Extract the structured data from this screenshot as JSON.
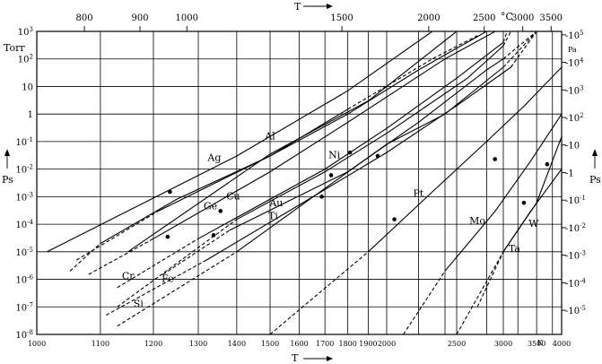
{
  "chart_data": {
    "type": "line",
    "title": "",
    "y_scale": "log",
    "x_scale": "reciprocal",
    "grid": true,
    "top_axis": {
      "label": "T",
      "ticks": [
        {
          "v": 800,
          "text": "800"
        },
        {
          "v": 900,
          "text": "900"
        },
        {
          "v": 1000,
          "text": "1000"
        },
        {
          "v": 1500,
          "text": "1500"
        },
        {
          "v": 2000,
          "text": "2000"
        },
        {
          "v": 2500,
          "text": "2500"
        },
        {
          "v": 3000,
          "text": "3000"
        },
        {
          "v": 3500,
          "text": "3500"
        }
      ],
      "unit": "°C"
    },
    "bottom_axis": {
      "label": "T",
      "unit": "K",
      "ticks": [
        {
          "v": 1000,
          "text": "1000"
        },
        {
          "v": 1100,
          "text": "1100"
        },
        {
          "v": 1200,
          "text": "1200"
        },
        {
          "v": 1300,
          "text": "1300"
        },
        {
          "v": 1400,
          "text": "1400"
        },
        {
          "v": 1500,
          "text": "1500"
        },
        {
          "v": 1600,
          "text": "1600"
        },
        {
          "v": 1700,
          "text": "1700"
        },
        {
          "v": 1800,
          "text": "1800"
        },
        {
          "v": 1900,
          "text": "1900"
        },
        {
          "v": 2000,
          "text": "2000"
        },
        {
          "v": 2500,
          "text": "2500"
        },
        {
          "v": 3000,
          "text": "3000"
        },
        {
          "v": 3500,
          "text": "3500"
        },
        {
          "v": 4000,
          "text": "4000"
        }
      ],
      "extra_grid": [
        2200,
        2400,
        2800,
        3200,
        3800
      ]
    },
    "left_axis": {
      "unit": "Torr",
      "label": "Ps",
      "ylim": [
        1e-08,
        1000
      ],
      "ticks": [
        {
          "v": 1000,
          "base": "10",
          "exp": "3"
        },
        {
          "v": 100,
          "base": "10",
          "exp": "2"
        },
        {
          "v": 10,
          "base": "10",
          "exp": ""
        },
        {
          "v": 1,
          "base": "1",
          "exp": ""
        },
        {
          "v": 0.1,
          "base": "10",
          "exp": "-1"
        },
        {
          "v": 0.01,
          "base": "10",
          "exp": "-2"
        },
        {
          "v": 0.001,
          "base": "10",
          "exp": "-3"
        },
        {
          "v": 0.0001,
          "base": "10",
          "exp": "-4"
        },
        {
          "v": 1e-05,
          "base": "10",
          "exp": "-5"
        },
        {
          "v": 1e-06,
          "base": "10",
          "exp": "-6"
        },
        {
          "v": 1e-07,
          "base": "10",
          "exp": "-7"
        },
        {
          "v": 1e-08,
          "base": "10",
          "exp": "-8"
        }
      ]
    },
    "right_axis": {
      "unit": "Pa",
      "label": "Ps",
      "ticks": [
        {
          "v": 100000,
          "base": "10",
          "exp": "5"
        },
        {
          "v": 10000,
          "base": "10",
          "exp": "4"
        },
        {
          "v": 1000,
          "base": "10",
          "exp": "3"
        },
        {
          "v": 100,
          "base": "10",
          "exp": "2"
        },
        {
          "v": 10,
          "base": "10",
          "exp": ""
        },
        {
          "v": 1,
          "base": "1",
          "exp": ""
        },
        {
          "v": 0.1,
          "base": "10",
          "exp": "-1"
        },
        {
          "v": 0.01,
          "base": "10",
          "exp": "-2"
        },
        {
          "v": 0.001,
          "base": "10",
          "exp": "-3"
        },
        {
          "v": 0.0001,
          "base": "10",
          "exp": "-4"
        },
        {
          "v": 1e-05,
          "base": "10",
          "exp": "-5"
        }
      ]
    },
    "series": [
      {
        "name": "Ag",
        "solid": [
          [
            1015,
            1e-05
          ],
          [
            1400,
            0.03
          ],
          [
            1800,
            7
          ],
          [
            2300,
            1000
          ]
        ],
        "low": [],
        "high": [],
        "melting_point": [
          1235,
          0.0015
        ]
      },
      {
        "name": "Al",
        "solid": [
          [
            1150,
            1e-05
          ],
          [
            1500,
            0.035
          ],
          [
            1900,
            3
          ],
          [
            2500,
            1000
          ]
        ],
        "low": [],
        "high": [],
        "melting_point": null
      },
      {
        "name": "Cr",
        "solid": [
          [
            1100,
            2e-05
          ],
          [
            1250,
            0.0008
          ],
          [
            1500,
            0.03
          ],
          [
            1800,
            1.5
          ]
        ],
        "low": [
          [
            1050,
            2e-06
          ],
          [
            1100,
            2e-05
          ]
        ],
        "high": [
          [
            1800,
            1.5
          ],
          [
            2300,
            100
          ],
          [
            2700,
            700
          ]
        ],
        "melting_point": [
          1230,
          3.5e-05
        ]
      },
      {
        "name": "Ge",
        "solid": [
          [
            1210,
            0.0003
          ],
          [
            1500,
            0.03
          ],
          [
            1800,
            1
          ],
          [
            2200,
            40
          ],
          [
            2800,
            1000
          ]
        ],
        "low": [
          [
            1060,
            5e-06
          ],
          [
            1210,
            0.0003
          ]
        ],
        "high": [],
        "melting_point": null
      },
      {
        "name": "Cu",
        "solid": [
          [
            1200,
            3e-05
          ],
          [
            1500,
            0.008
          ],
          [
            1800,
            0.5
          ],
          [
            2400,
            100
          ],
          [
            2900,
            1000
          ]
        ],
        "low": [
          [
            1080,
            1.5e-06
          ],
          [
            1200,
            3e-05
          ]
        ],
        "high": [],
        "melting_point": [
          1356,
          0.0003
        ]
      },
      {
        "name": "Au",
        "solid": [
          [
            1300,
            3e-05
          ],
          [
            1700,
            0.01
          ],
          [
            2000,
            0.3
          ],
          [
            2500,
            20
          ],
          [
            3000,
            400
          ]
        ],
        "low": [
          [
            1130,
            5e-07
          ],
          [
            1300,
            3e-05
          ]
        ],
        "high": [
          [
            3000,
            400
          ],
          [
            3050,
            1000
          ]
        ],
        "melting_point": [
          1338,
          4e-05
        ]
      },
      {
        "name": "Fe",
        "solid": [
          [
            1320,
            5e-06
          ],
          [
            1600,
            0.0005
          ],
          [
            2000,
            0.04
          ],
          [
            2500,
            2
          ],
          [
            3100,
            50
          ]
        ],
        "low": [
          [
            1110,
            5e-08
          ],
          [
            1320,
            5e-06
          ]
        ],
        "high": [
          [
            3100,
            50
          ],
          [
            3500,
            1000
          ]
        ],
        "melting_point": [
          1810,
          0.04
        ]
      },
      {
        "name": "Ni",
        "solid": [
          [
            1400,
            0.00015
          ],
          [
            1700,
            0.008
          ],
          [
            2000,
            0.2
          ],
          [
            2600,
            20
          ],
          [
            3000,
            300
          ]
        ],
        "low": [
          [
            1130,
            1e-07
          ],
          [
            1400,
            0.00015
          ]
        ],
        "high": [
          [
            3000,
            300
          ],
          [
            3100,
            1000
          ]
        ],
        "melting_point": [
          1726,
          0.006
        ]
      },
      {
        "name": "Ti",
        "solid": [
          [
            1380,
            6e-05
          ],
          [
            1800,
            0.008
          ],
          [
            2200,
            0.5
          ],
          [
            2800,
            40
          ],
          [
            3000,
            100
          ]
        ],
        "low": [
          [
            1220,
            1.5e-06
          ],
          [
            1380,
            6e-05
          ]
        ],
        "high": [
          [
            3000,
            100
          ],
          [
            3500,
            1000
          ]
        ],
        "melting_point": [
          1950,
          0.03
        ]
      },
      {
        "name": "Si",
        "solid": [
          [
            1400,
            1e-05
          ],
          [
            1700,
            0.002
          ],
          [
            2000,
            0.08
          ],
          [
            2400,
            1
          ],
          [
            3000,
            50
          ]
        ],
        "low": [
          [
            1130,
            2e-08
          ],
          [
            1400,
            1e-05
          ]
        ],
        "high": [
          [
            3000,
            50
          ],
          [
            3500,
            1000
          ]
        ],
        "melting_point": [
          1687,
          0.001
        ]
      },
      {
        "name": "Pt",
        "solid": [
          [
            1900,
            1e-05
          ],
          [
            2300,
            0.0015
          ],
          [
            2800,
            0.1
          ],
          [
            3300,
            2
          ],
          [
            4000,
            50
          ]
        ],
        "low": [
          [
            1500,
            1e-08
          ],
          [
            1900,
            1e-05
          ]
        ],
        "high": [],
        "melting_point": [
          2045,
          0.00015
        ]
      },
      {
        "name": "Mo",
        "solid": [
          [
            2400,
            2e-06
          ],
          [
            2900,
            0.0003
          ],
          [
            3400,
            0.02
          ],
          [
            4000,
            1
          ]
        ],
        "low": [
          [
            2100,
            1e-08
          ],
          [
            2400,
            2e-06
          ]
        ],
        "high": [],
        "melting_point": [
          2896,
          0.023
        ]
      },
      {
        "name": "Ta",
        "solid": [
          [
            3000,
            1e-05
          ],
          [
            3400,
            0.0003
          ],
          [
            4000,
            0.01
          ]
        ],
        "low": [
          [
            2500,
            1e-08
          ],
          [
            3000,
            1e-05
          ]
        ],
        "high": [],
        "melting_point": [
          3290,
          0.0006
        ]
      },
      {
        "name": "W",
        "solid": [
          [
            3000,
            1e-05
          ],
          [
            3500,
            0.0006
          ],
          [
            4000,
            0.15
          ]
        ],
        "low": [
          [
            2700,
            1e-07
          ],
          [
            3000,
            1e-05
          ]
        ],
        "high": [],
        "melting_point": [
          3695,
          0.015
        ]
      }
    ],
    "labels": [
      {
        "name": "Ag",
        "x": 1340,
        "y": 0.02
      },
      {
        "name": "Al",
        "x": 1500,
        "y": 0.12
      },
      {
        "name": "Cr",
        "x": 1150,
        "y": 1e-06
      },
      {
        "name": "Ge",
        "x": 1330,
        "y": 0.00035
      },
      {
        "name": "Cu",
        "x": 1390,
        "y": 0.0008
      },
      {
        "name": "Au",
        "x": 1520,
        "y": 0.00045
      },
      {
        "name": "Fe",
        "x": 1230,
        "y": 8e-07
      },
      {
        "name": "Ni",
        "x": 1740,
        "y": 0.025
      },
      {
        "name": "Ti",
        "x": 1510,
        "y": 0.00015
      },
      {
        "name": "Si",
        "x": 1170,
        "y": 1e-07
      },
      {
        "name": "Pt",
        "x": 2200,
        "y": 0.001
      },
      {
        "name": "Mo",
        "x": 2700,
        "y": 0.0001
      },
      {
        "name": "Ta",
        "x": 3150,
        "y": 1e-05
      },
      {
        "name": "W",
        "x": 3450,
        "y": 8e-05
      }
    ]
  }
}
